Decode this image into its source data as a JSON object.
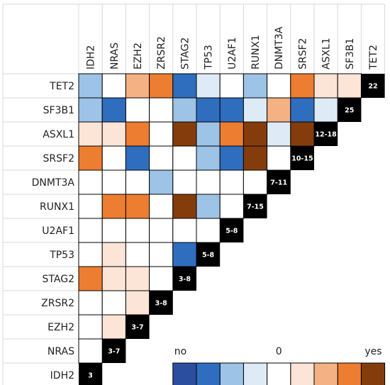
{
  "chart_data": {
    "type": "heatmap",
    "title": "",
    "genes_rows": [
      "TET2",
      "SF3B1",
      "ASXL1",
      "SRSF2",
      "DNMT3A",
      "RUNX1",
      "U2AF1",
      "TP53",
      "STAG2",
      "ZRSR2",
      "EZH2",
      "NRAS",
      "IDH2"
    ],
    "genes_cols": [
      "IDH2",
      "NRAS",
      "EZH2",
      "ZRSR2",
      "STAG2",
      "TP53",
      "U2AF1",
      "RUNX1",
      "DNMT3A",
      "SRSF2",
      "ASXL1",
      "SF3B1",
      "TET2"
    ],
    "color_scale": [
      "#2B4E9F",
      "#2F6EBF",
      "#9DC3E6",
      "#DEEBF7",
      "#FFFFFF",
      "#FCE4D6",
      "#F4B183",
      "#ED7D31",
      "#843C0C"
    ],
    "cells": [
      [
        2,
        4,
        6,
        7,
        1,
        3,
        4,
        2,
        4,
        7,
        5,
        5
      ],
      [
        2,
        1,
        4,
        4,
        2,
        1,
        1,
        3,
        6,
        1,
        3
      ],
      [
        5,
        5,
        7,
        4,
        8,
        2,
        7,
        8,
        3,
        8
      ],
      [
        7,
        4,
        1,
        4,
        4,
        2,
        1,
        8,
        4
      ],
      [
        4,
        4,
        4,
        2,
        4,
        4,
        4,
        4
      ],
      [
        4,
        7,
        7,
        4,
        8,
        2,
        4
      ],
      [
        4,
        4,
        4,
        4,
        4,
        4
      ],
      [
        4,
        5,
        4,
        4,
        1
      ],
      [
        7,
        5,
        5,
        4
      ],
      [
        4,
        4,
        5
      ],
      [
        4,
        5
      ],
      [
        4
      ]
    ],
    "diagonal_labels": [
      "22",
      "25",
      "12-18",
      "10-15",
      "7-11",
      "7-15",
      "5-8",
      "5-8",
      "3-8",
      "3-8",
      "3-7",
      "3-7",
      "3"
    ],
    "legend": {
      "colors": [
        "#2B4E9F",
        "#2F6EBF",
        "#9DC3E6",
        "#DEEBF7",
        "#FFFFFF",
        "#FCE4D6",
        "#F4B183",
        "#ED7D31",
        "#843C0C"
      ],
      "label_low": "no",
      "label_mid": "0",
      "label_high": "yes"
    },
    "colors": {
      "diagonal": "#000000",
      "grid": "#000000",
      "outer_grid": "#D9D9D9"
    }
  }
}
